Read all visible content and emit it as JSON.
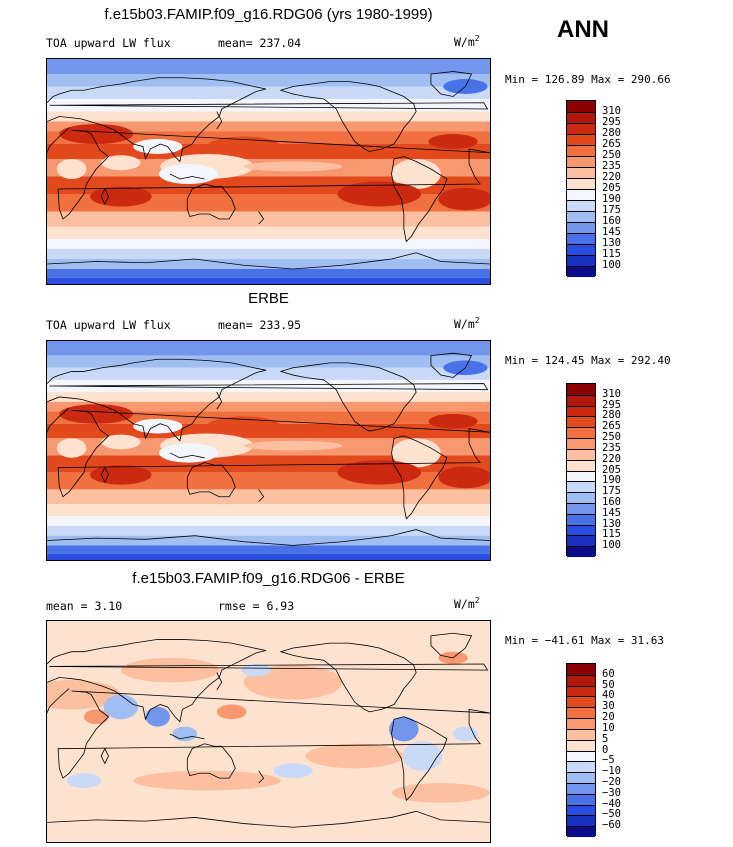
{
  "season": "ANN",
  "panels": [
    {
      "title": "f.e15b03.FAMIP.f09_g16.RDG06 (yrs 1980-1999)",
      "left_label": "TOA upward LW flux",
      "center_label": "mean= 237.04",
      "units": "W/m",
      "units_sup": "2",
      "stats": "Min = 126.89 Max = 290.66",
      "colorbar": {
        "labels": [
          "310",
          "295",
          "280",
          "265",
          "250",
          "235",
          "220",
          "205",
          "190",
          "175",
          "160",
          "145",
          "130",
          "115",
          "100"
        ],
        "colors": [
          "#8b0000",
          "#b0180c",
          "#cc2a10",
          "#e24a1e",
          "#f07040",
          "#f89870",
          "#fcc0a0",
          "#fde2d0",
          "#f4f6fc",
          "#c8daf8",
          "#a0bef2",
          "#7296ec",
          "#4a72e8",
          "#2a4ee0",
          "#1a30c0",
          "#0a0a8a"
        ]
      },
      "field_type": "absolute"
    },
    {
      "title": "ERBE",
      "left_label": "TOA upward LW flux",
      "center_label": "mean= 233.95",
      "units": "W/m",
      "units_sup": "2",
      "stats": "Min = 124.45 Max = 292.40",
      "colorbar": {
        "labels": [
          "310",
          "295",
          "280",
          "265",
          "250",
          "235",
          "220",
          "205",
          "190",
          "175",
          "160",
          "145",
          "130",
          "115",
          "100"
        ],
        "colors": [
          "#8b0000",
          "#b0180c",
          "#cc2a10",
          "#e24a1e",
          "#f07040",
          "#f89870",
          "#fcc0a0",
          "#fde2d0",
          "#f4f6fc",
          "#c8daf8",
          "#a0bef2",
          "#7296ec",
          "#4a72e8",
          "#2a4ee0",
          "#1a30c0",
          "#0a0a8a"
        ]
      },
      "field_type": "absolute"
    },
    {
      "title": "f.e15b03.FAMIP.f09_g16.RDG06 - ERBE",
      "left_label": "mean =    3.10",
      "center_label": "rmse =    6.93",
      "units": "W/m",
      "units_sup": "2",
      "stats": "Min = −41.61 Max =  31.63",
      "colorbar": {
        "labels": [
          "60",
          "50",
          "40",
          "30",
          "20",
          "10",
          "5",
          "0",
          "−5",
          "−10",
          "−20",
          "−30",
          "−40",
          "−50",
          "−60"
        ],
        "colors": [
          "#8b0000",
          "#b0180c",
          "#cc2a10",
          "#e24a1e",
          "#f07040",
          "#f89870",
          "#fcc0a0",
          "#fde2d0",
          "#f4f6fc",
          "#c8daf8",
          "#a0bef2",
          "#7296ec",
          "#4a72e8",
          "#2a4ee0",
          "#1a30c0",
          "#0a0a8a"
        ]
      },
      "field_type": "difference"
    }
  ]
}
